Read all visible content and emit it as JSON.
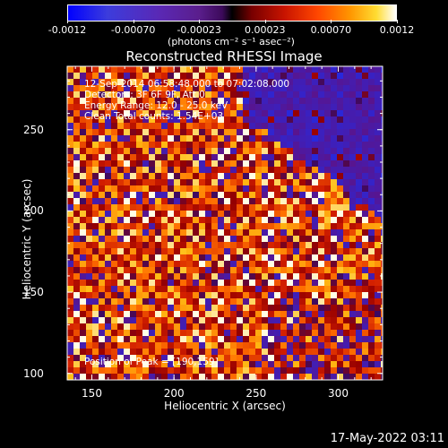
{
  "chart_data": {
    "type": "heatmap",
    "title": "Reconstructed RHESSI Image",
    "xlabel": "Heliocentric X (arcsec)",
    "ylabel": "Heliocentric Y (arcsec)",
    "xlim": [
      135,
      327
    ],
    "ylim": [
      96,
      289
    ],
    "x_ticks": [
      "150",
      "200",
      "250",
      "300"
    ],
    "y_ticks": [
      "100",
      "150",
      "200",
      "250"
    ],
    "colorbar": {
      "ticks": [
        "-0.0012",
        "-0.00070",
        "-0.00023",
        "0.00023",
        "0.00070",
        "0.0012"
      ],
      "units": "(photons cm⁻² s⁻¹ asec⁻²)",
      "range": [
        -0.0012,
        0.0012
      ]
    },
    "annotations": {
      "time": "12-Sep-2014 06:58:48.000 to 07:02:08.000",
      "detectors": "Detectors: 3F 6F 9F, Att 0",
      "energy": "Energy Range: 12.0 - 25.0 keV",
      "clean": "Clean     Total counts: 1.54E+03",
      "peak": "Position of Peak = [190,159]"
    },
    "peak": [
      190,
      159
    ]
  },
  "footer": "17-May-2022 03:11"
}
